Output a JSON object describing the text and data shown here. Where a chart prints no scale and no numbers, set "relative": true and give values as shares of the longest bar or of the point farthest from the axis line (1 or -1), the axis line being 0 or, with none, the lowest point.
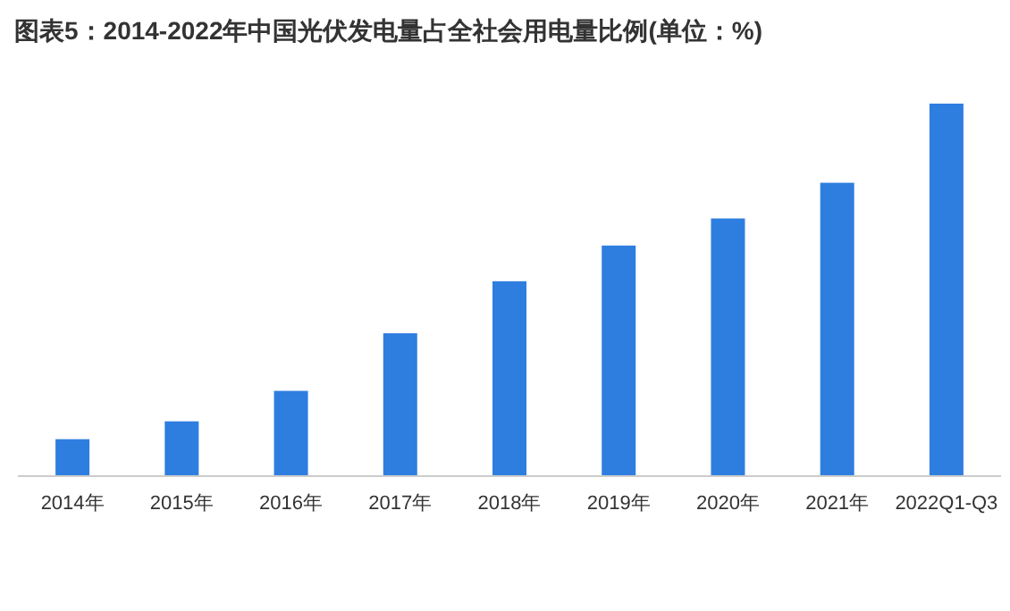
{
  "chart_data": {
    "type": "bar",
    "title": "图表5：2014-2022年中国光伏发电量占全社会用电量比例(单位：%)",
    "categories": [
      "2014年",
      "2015年",
      "2016年",
      "2017年",
      "2018年",
      "2019年",
      "2020年",
      "2021年",
      "2022Q1-Q3"
    ],
    "values": [
      0.097,
      0.145,
      0.227,
      0.382,
      0.522,
      0.618,
      0.691,
      0.787,
      1
    ],
    "color": "#2e7ee0",
    "relative": true
  }
}
